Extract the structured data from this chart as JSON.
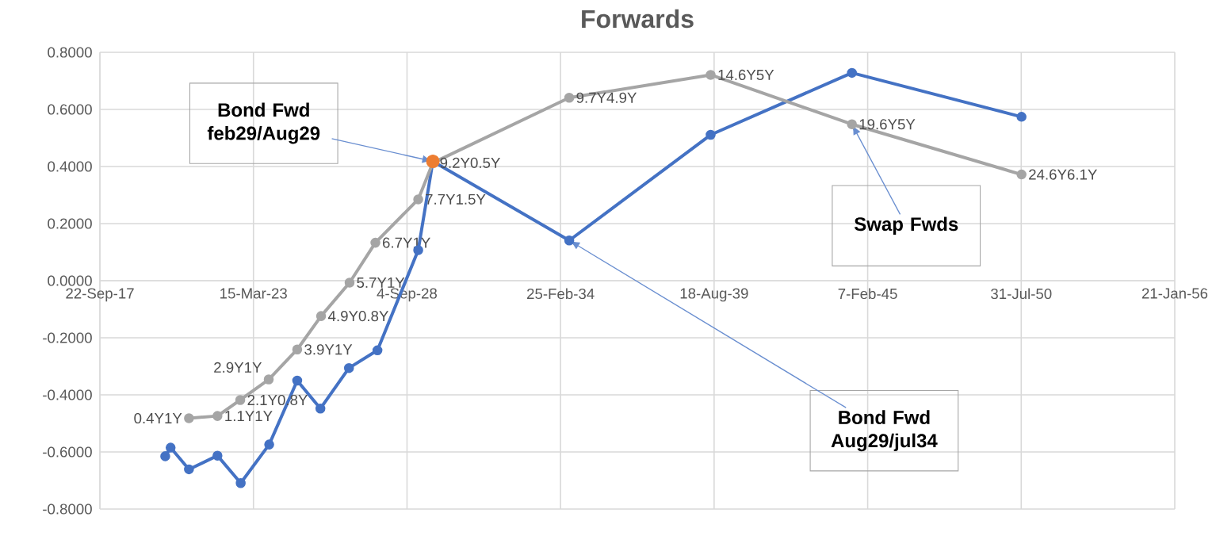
{
  "chart_data": {
    "type": "line",
    "title": "Forwards",
    "xlim": [
      "2017-09-22",
      "2056-01-21"
    ],
    "xticks": [
      {
        "value": "2017-09-22",
        "label": "22-Sep-17"
      },
      {
        "value": "2023-03-15",
        "label": "15-Mar-23"
      },
      {
        "value": "2028-09-04",
        "label": "4-Sep-28"
      },
      {
        "value": "2034-02-25",
        "label": "25-Feb-34"
      },
      {
        "value": "2039-08-18",
        "label": "18-Aug-39"
      },
      {
        "value": "2045-02-07",
        "label": "7-Feb-45"
      },
      {
        "value": "2050-07-31",
        "label": "31-Jul-50"
      },
      {
        "value": "2056-01-21",
        "label": "21-Jan-56"
      }
    ],
    "ylim": [
      -0.8,
      0.8
    ],
    "yticks": [
      {
        "value": -0.8,
        "label": "-0.8000"
      },
      {
        "value": -0.6,
        "label": "-0.6000"
      },
      {
        "value": -0.4,
        "label": "-0.4000"
      },
      {
        "value": -0.2,
        "label": "-0.2000"
      },
      {
        "value": 0,
        "label": "0.0000"
      },
      {
        "value": 0.2,
        "label": "0.2000"
      },
      {
        "value": 0.4,
        "label": "0.4000"
      },
      {
        "value": 0.6,
        "label": "0.6000"
      },
      {
        "value": 0.8,
        "label": "0.8000"
      }
    ],
    "grid": true,
    "marker": "circle",
    "series": [
      {
        "color": "#4472c4",
        "x": [
          "2020-01-21",
          "2020-03-31",
          "2020-11-25",
          "2021-12-01",
          "2022-09-30",
          "2023-10-06",
          "2024-10-05",
          "2025-08-03",
          "2026-08-10",
          "2027-08-16",
          "2029-01-28",
          "2029-08-07",
          "2034-06-18",
          "2039-07-04",
          "2044-07-17",
          "2050-08-04"
        ],
        "values": [
          -0.615,
          -0.585,
          -0.661,
          -0.613,
          -0.709,
          -0.574,
          -0.35,
          -0.448,
          -0.306,
          -0.244,
          0.107,
          0.418,
          0.141,
          0.511,
          0.728,
          0.574
        ]
      },
      {
        "color": "#a5a5a5",
        "x": [
          "2020-11-25",
          "2021-12-01",
          "2022-09-24",
          "2023-09-30",
          "2024-10-05",
          "2025-08-12",
          "2026-08-18",
          "2027-07-20",
          "2029-01-28",
          "2029-08-07",
          "2034-06-18",
          "2039-07-04",
          "2044-07-17",
          "2050-08-04"
        ],
        "values": [
          -0.482,
          -0.474,
          -0.418,
          -0.346,
          -0.241,
          -0.124,
          -0.007,
          0.133,
          0.285,
          0.413,
          0.641,
          0.721,
          0.548,
          0.372
        ]
      },
      {
        "type": "scatter",
        "color": "#ed7d31",
        "x": [
          "2029-08-07"
        ],
        "values": [
          0.418
        ]
      }
    ],
    "annotations": [
      {
        "text": "Bond Fwd feb29/Aug29",
        "x": "2029-08-07",
        "y": 0.418
      },
      {
        "text": "Bond Fwd Aug29/jul34",
        "x": "2034-06-18",
        "y": 0.141
      },
      {
        "text": "Swap Fwds",
        "x": "2044-07-17",
        "y": 0.548
      },
      {
        "text": "0.4Y1Y",
        "x": "2020-11-25",
        "y": -0.482
      },
      {
        "text": "1.1Y1Y",
        "x": "2021-12-01",
        "y": -0.474
      },
      {
        "text": "2.1Y0.8Y",
        "x": "2022-09-24",
        "y": -0.418
      },
      {
        "text": "2.9Y1Y",
        "x": "2023-09-30",
        "y": -0.346
      },
      {
        "text": "3.9Y1Y",
        "x": "2024-10-05",
        "y": -0.241
      },
      {
        "text": "4.9Y0.8Y",
        "x": "2025-08-12",
        "y": -0.124
      },
      {
        "text": "5.7Y1Y",
        "x": "2026-08-18",
        "y": -0.007
      },
      {
        "text": "6.7Y1Y",
        "x": "2027-07-20",
        "y": 0.133
      },
      {
        "text": "7.7Y1.5Y",
        "x": "2029-01-28",
        "y": 0.285
      },
      {
        "text": "9.2Y0.5Y",
        "x": "2029-08-07",
        "y": 0.413
      },
      {
        "text": "9.7Y4.9Y",
        "x": "2034-06-18",
        "y": 0.641
      },
      {
        "text": "14.6Y5Y",
        "x": "2039-07-04",
        "y": 0.721
      },
      {
        "text": "19.6Y5Y",
        "x": "2044-07-17",
        "y": 0.548
      },
      {
        "text": "24.6Y6.1Y",
        "x": "2050-08-04",
        "y": 0.372
      }
    ]
  }
}
